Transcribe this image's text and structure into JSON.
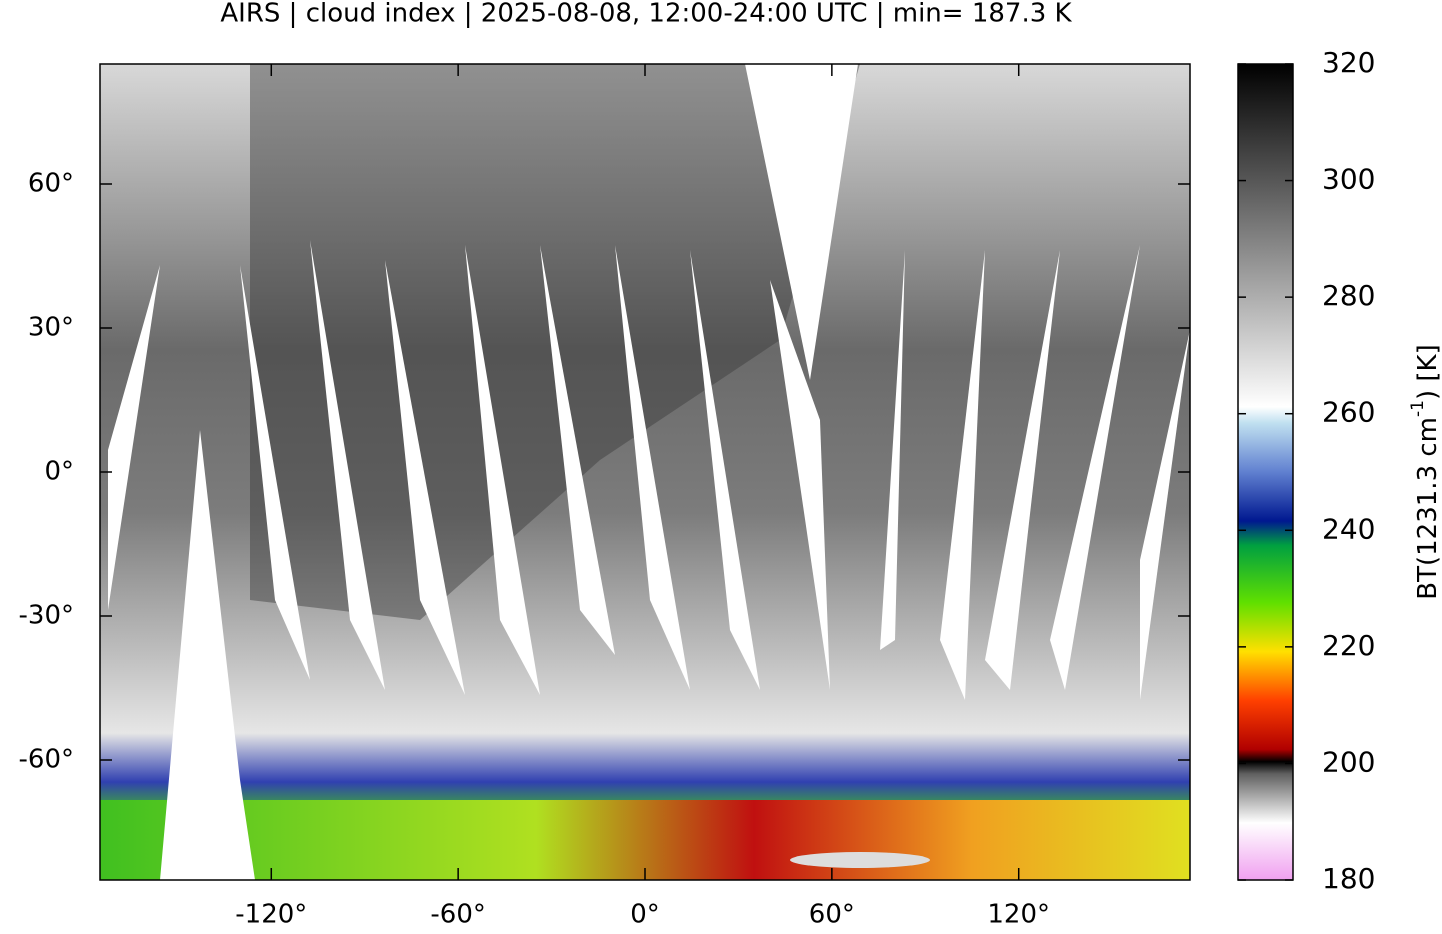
{
  "title": "AIRS | cloud index | 2025-08-08, 12:00-24:00 UTC | min= 187.3 K",
  "map": {
    "xlim": [
      -175,
      175
    ],
    "ylim": [
      -85,
      85
    ],
    "xticks": [
      {
        "value": -120,
        "label": "-120°"
      },
      {
        "value": -60,
        "label": "-60°"
      },
      {
        "value": 0,
        "label": "0°"
      },
      {
        "value": 60,
        "label": "60°"
      },
      {
        "value": 120,
        "label": "120°"
      }
    ],
    "yticks": [
      {
        "value": 60,
        "label": "60°"
      },
      {
        "value": 30,
        "label": "30°"
      },
      {
        "value": 0,
        "label": "0°"
      },
      {
        "value": -30,
        "label": "-30°"
      },
      {
        "value": -60,
        "label": "-60°"
      }
    ]
  },
  "colorbar": {
    "label": [
      "BT(1231.3 cm",
      "-1",
      ") [K]"
    ],
    "lim": [
      180,
      320
    ],
    "ticks": [
      180,
      200,
      220,
      240,
      260,
      280,
      300,
      320
    ]
  }
}
